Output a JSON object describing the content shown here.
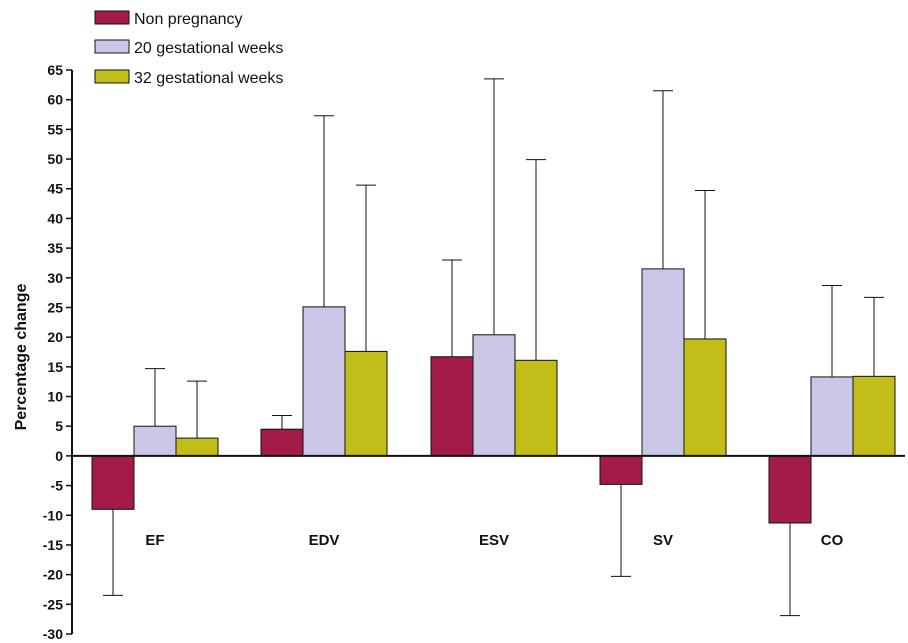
{
  "chart_data": {
    "type": "bar",
    "ylabel": "Percentage change",
    "ylim": [
      -30,
      65
    ],
    "ytick_step": 5,
    "categories": [
      "EF",
      "EDV",
      "ESV",
      "SV",
      "CO"
    ],
    "series": [
      {
        "name": "Non pregnancy",
        "color": "#a31c48",
        "values": [
          -9,
          4.5,
          16.7,
          -4.8,
          -11.3
        ],
        "error_tips": [
          -23.5,
          6.8,
          33,
          -20.3,
          -26.9
        ]
      },
      {
        "name": "20 gestational weeks",
        "color": "#c9c6e6",
        "values": [
          5,
          25.1,
          20.4,
          31.5,
          13.3
        ],
        "error_tips": [
          14.7,
          57.3,
          63.5,
          61.5,
          28.7
        ]
      },
      {
        "name": "32 gestational weeks",
        "color": "#c2bd19",
        "values": [
          3,
          17.6,
          16.1,
          19.7,
          13.4
        ],
        "error_tips": [
          12.6,
          45.6,
          49.9,
          44.7,
          26.7
        ]
      }
    ],
    "legend_position": "top-left",
    "grid": false
  }
}
